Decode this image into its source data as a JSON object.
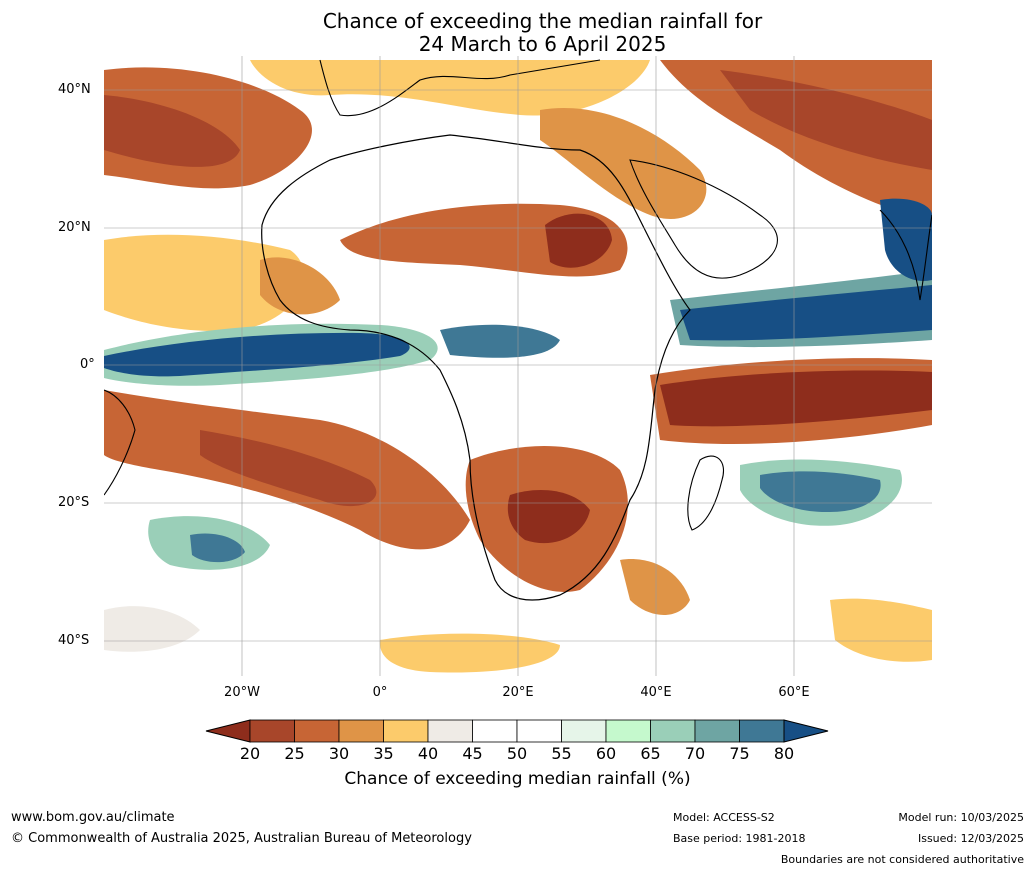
{
  "title": {
    "line1": "Chance of exceeding the median rainfall for",
    "line2": "24 March to 6 April 2025"
  },
  "map": {
    "lat_labels": [
      "40°N",
      "20°N",
      "0°",
      "20°S",
      "40°S"
    ],
    "lon_labels": [
      "20°W",
      "0°",
      "20°E",
      "40°E",
      "60°E"
    ]
  },
  "colorbar": {
    "ticks": [
      "20",
      "25",
      "30",
      "35",
      "40",
      "45",
      "50",
      "55",
      "60",
      "65",
      "70",
      "75",
      "80"
    ],
    "colors": [
      "#8e2d1c",
      "#a8462a",
      "#c76535",
      "#df9447",
      "#fccb6b",
      "#efebe6",
      "#ffffff",
      "#ffffff",
      "#e6f5e9",
      "#c5f9cd",
      "#9acfb8",
      "#6ea5a3",
      "#3f7895",
      "#174f85"
    ],
    "label": "Chance of exceeding median rainfall (%)"
  },
  "footer": {
    "url": "www.bom.gov.au/climate",
    "copyright": "© Commonwealth of Australia 2025, Australian Bureau of Meteorology",
    "model": "Model: ACCESS-S2",
    "base_period": "Base period: 1981-2018",
    "model_run": "Model run: 10/03/2025",
    "issued": "Issued: 12/03/2025",
    "boundaries": "Boundaries are not considered authoritative"
  }
}
